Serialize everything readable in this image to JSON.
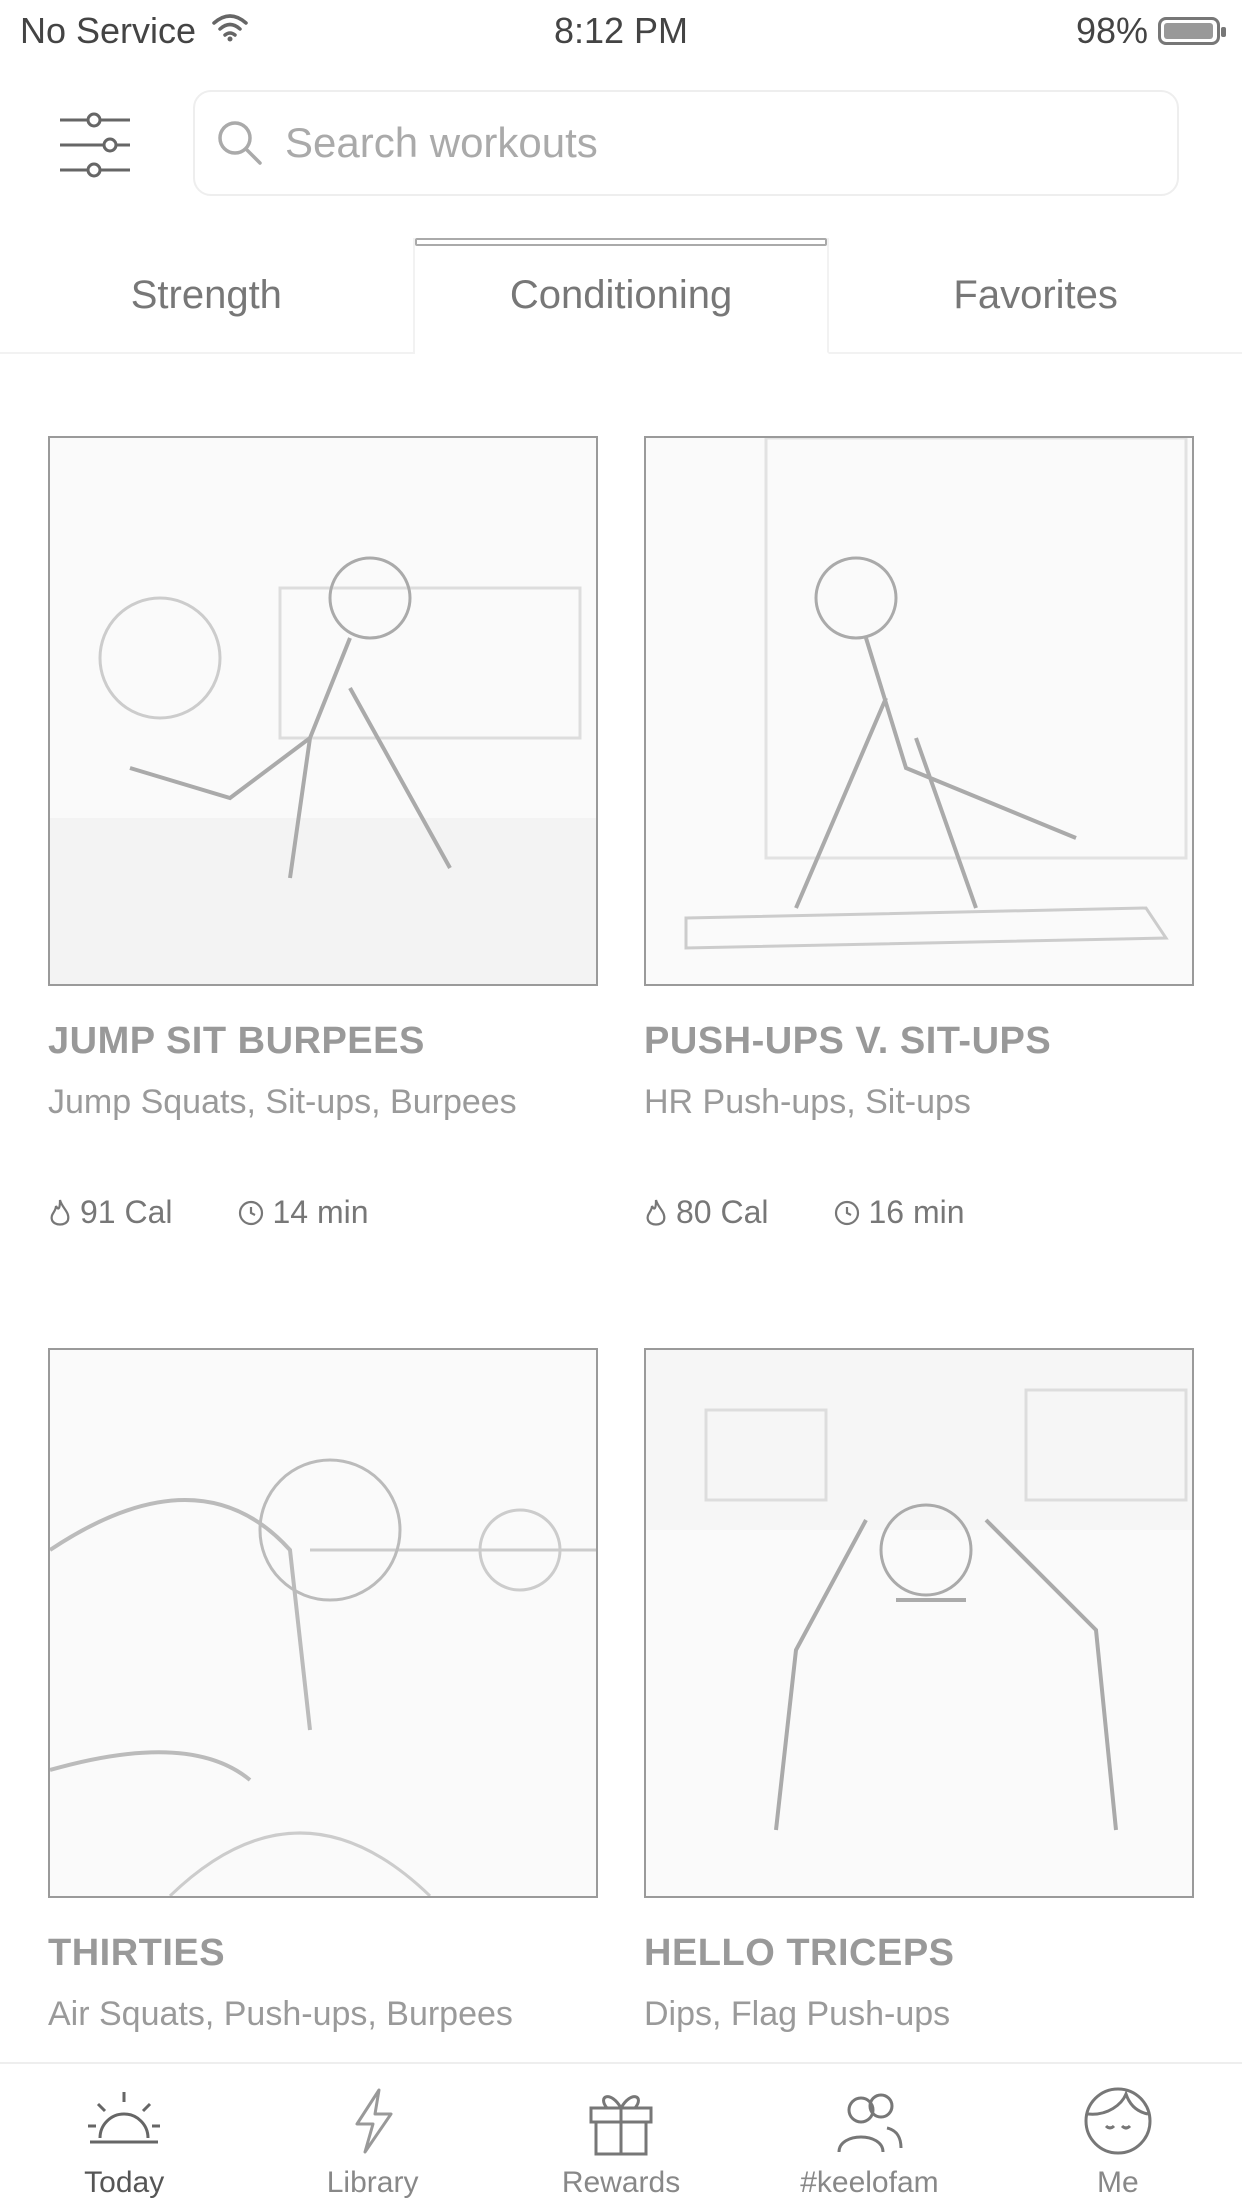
{
  "status_bar": {
    "carrier": "No Service",
    "time": "8:12 PM",
    "battery_percent": "98%",
    "battery_level": 0.98
  },
  "search": {
    "placeholder": "Search workouts"
  },
  "tabs": [
    {
      "label": "Strength",
      "active": false
    },
    {
      "label": "Conditioning",
      "active": true
    },
    {
      "label": "Favorites",
      "active": false
    }
  ],
  "workouts": [
    {
      "title": "JUMP SIT BURPEES",
      "exercises": "Jump Squats, Sit-ups, Burpees",
      "calories": "91 Cal",
      "duration": "14 min"
    },
    {
      "title": "PUSH-UPS V. SIT-UPS",
      "exercises": "HR Push-ups, Sit-ups",
      "calories": "80 Cal",
      "duration": "16 min"
    },
    {
      "title": "THIRTIES",
      "exercises": "Air Squats, Push-ups, Burpees"
    },
    {
      "title": "HELLO TRICEPS",
      "exercises": "Dips, Flag Push-ups"
    }
  ],
  "bottom_nav": [
    {
      "label": "Today",
      "icon": "sun-icon",
      "active": true
    },
    {
      "label": "Library",
      "icon": "lightning-icon",
      "active": false
    },
    {
      "label": "Rewards",
      "icon": "gift-icon",
      "active": false
    },
    {
      "label": "#keelofam",
      "icon": "people-icon",
      "active": false
    },
    {
      "label": "Me",
      "icon": "face-icon",
      "active": false
    }
  ]
}
